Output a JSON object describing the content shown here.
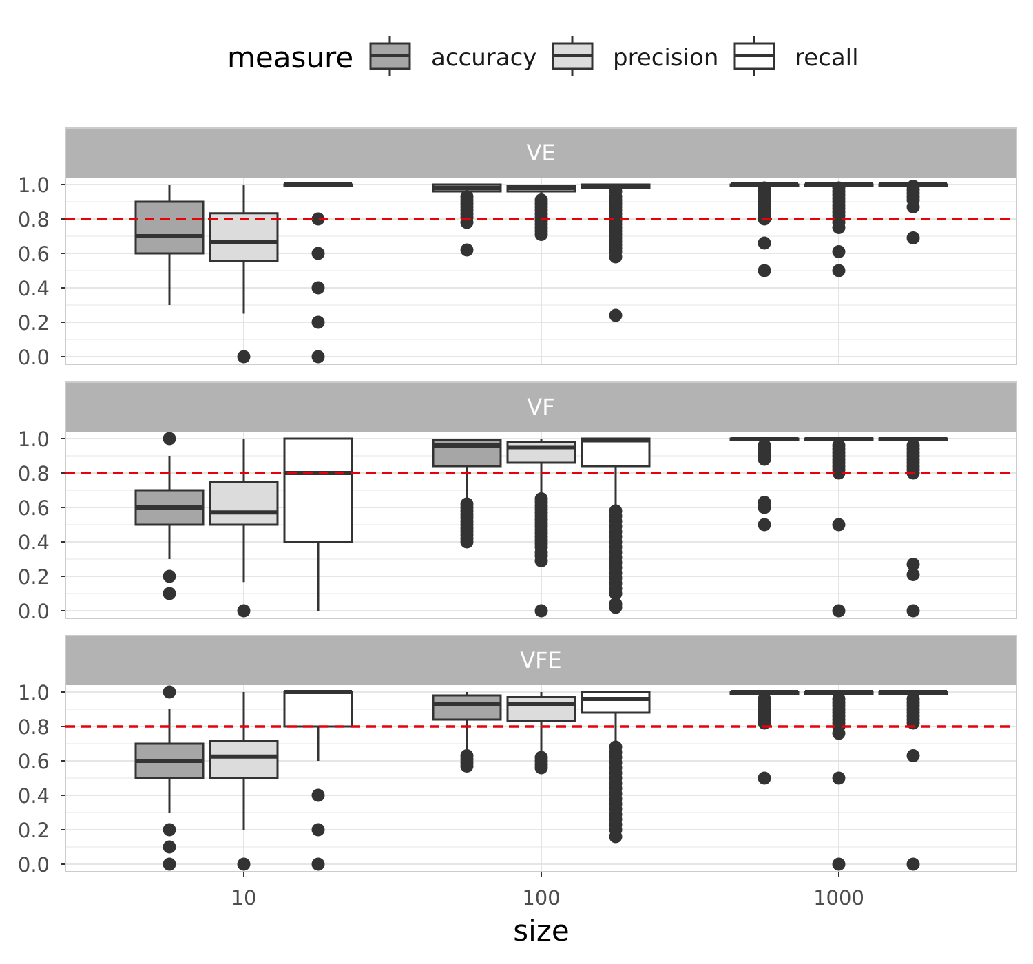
{
  "chart_data": {
    "type": "boxplot",
    "xlabel": "size",
    "x_scale": "log10",
    "x_categories": [
      "10",
      "100",
      "1000"
    ],
    "ylim": [
      0,
      1
    ],
    "y_ticks": [
      "0.0",
      "0.2",
      "0.4",
      "0.6",
      "0.8",
      "1.0"
    ],
    "reference_line": {
      "y": 0.8,
      "color": "#e8000b",
      "style": "dashed"
    },
    "legend": {
      "title": "measure",
      "position": "top",
      "entries": [
        {
          "name": "accuracy",
          "fill": "#a6a6a6"
        },
        {
          "name": "precision",
          "fill": "#dcdcdc"
        },
        {
          "name": "recall",
          "fill": "#ffffff"
        }
      ]
    },
    "panels": [
      {
        "label": "VE",
        "groups": [
          {
            "size": "10",
            "boxes": [
              {
                "measure": "accuracy",
                "lower": 0.3,
                "q1": 0.6,
                "median": 0.7,
                "q3": 0.9,
                "upper": 1.0,
                "outliers": []
              },
              {
                "measure": "precision",
                "lower": 0.25,
                "q1": 0.556,
                "median": 0.667,
                "q3": 0.833,
                "upper": 1.0,
                "outliers": [
                  0.0
                ]
              },
              {
                "measure": "recall",
                "lower": 1.0,
                "q1": 1.0,
                "median": 1.0,
                "q3": 1.0,
                "upper": 1.0,
                "outliers": [
                  0.8,
                  0.6,
                  0.4,
                  0.2,
                  0.0
                ]
              }
            ]
          },
          {
            "size": "100",
            "boxes": [
              {
                "measure": "accuracy",
                "lower": 0.96,
                "q1": 0.96,
                "median": 0.98,
                "q3": 1.0,
                "upper": 1.0,
                "outliers": [
                  0.93,
                  0.91,
                  0.89,
                  0.87,
                  0.85,
                  0.83,
                  0.81,
                  0.78,
                  0.62
                ]
              },
              {
                "measure": "precision",
                "lower": 0.95,
                "q1": 0.96,
                "median": 0.98,
                "q3": 0.99,
                "upper": 1.0,
                "outliers": [
                  0.91,
                  0.89,
                  0.87,
                  0.85,
                  0.83,
                  0.81,
                  0.79,
                  0.77,
                  0.75,
                  0.73,
                  0.71
                ]
              },
              {
                "measure": "recall",
                "lower": 0.98,
                "q1": 0.98,
                "median": 0.99,
                "q3": 1.0,
                "upper": 1.0,
                "outliers": [
                  0.96,
                  0.93,
                  0.91,
                  0.89,
                  0.87,
                  0.85,
                  0.83,
                  0.81,
                  0.79,
                  0.77,
                  0.75,
                  0.73,
                  0.71,
                  0.69,
                  0.67,
                  0.65,
                  0.63,
                  0.61,
                  0.58,
                  0.24
                ]
              }
            ]
          },
          {
            "size": "1000",
            "boxes": [
              {
                "measure": "accuracy",
                "lower": 0.99,
                "q1": 0.99,
                "median": 1.0,
                "q3": 1.0,
                "upper": 1.0,
                "outliers": [
                  0.98,
                  0.96,
                  0.94,
                  0.92,
                  0.9,
                  0.88,
                  0.86,
                  0.84,
                  0.82,
                  0.8,
                  0.66,
                  0.5
                ]
              },
              {
                "measure": "precision",
                "lower": 0.99,
                "q1": 0.99,
                "median": 1.0,
                "q3": 1.0,
                "upper": 1.0,
                "outliers": [
                  0.98,
                  0.96,
                  0.94,
                  0.92,
                  0.9,
                  0.88,
                  0.86,
                  0.84,
                  0.82,
                  0.8,
                  0.78,
                  0.75,
                  0.61,
                  0.5
                ]
              },
              {
                "measure": "recall",
                "lower": 1.0,
                "q1": 1.0,
                "median": 1.0,
                "q3": 1.0,
                "upper": 1.0,
                "outliers": [
                  0.99,
                  0.97,
                  0.95,
                  0.93,
                  0.91,
                  0.87,
                  0.69
                ]
              }
            ]
          }
        ]
      },
      {
        "label": "VF",
        "groups": [
          {
            "size": "10",
            "boxes": [
              {
                "measure": "accuracy",
                "lower": 0.3,
                "q1": 0.5,
                "median": 0.6,
                "q3": 0.7,
                "upper": 0.9,
                "outliers": [
                  1.0,
                  0.2,
                  0.1
                ]
              },
              {
                "measure": "precision",
                "lower": 0.167,
                "q1": 0.5,
                "median": 0.571,
                "q3": 0.75,
                "upper": 1.0,
                "outliers": [
                  0.0
                ]
              },
              {
                "measure": "recall",
                "lower": 0.0,
                "q1": 0.4,
                "median": 0.8,
                "q3": 1.0,
                "upper": 1.0,
                "outliers": []
              }
            ]
          },
          {
            "size": "100",
            "boxes": [
              {
                "measure": "accuracy",
                "lower": 0.64,
                "q1": 0.84,
                "median": 0.96,
                "q3": 0.99,
                "upper": 1.0,
                "outliers": [
                  0.62,
                  0.6,
                  0.58,
                  0.56,
                  0.54,
                  0.52,
                  0.5,
                  0.48,
                  0.46,
                  0.44,
                  0.42,
                  0.4
                ]
              },
              {
                "measure": "precision",
                "lower": 0.67,
                "q1": 0.86,
                "median": 0.95,
                "q3": 0.98,
                "upper": 1.0,
                "outliers": [
                  0.65,
                  0.63,
                  0.61,
                  0.59,
                  0.57,
                  0.55,
                  0.53,
                  0.51,
                  0.49,
                  0.47,
                  0.45,
                  0.43,
                  0.41,
                  0.39,
                  0.37,
                  0.34,
                  0.32,
                  0.29,
                  0.0
                ]
              },
              {
                "measure": "recall",
                "lower": 0.6,
                "q1": 0.84,
                "median": 0.99,
                "q3": 1.0,
                "upper": 1.0,
                "outliers": [
                  0.58,
                  0.55,
                  0.52,
                  0.49,
                  0.46,
                  0.43,
                  0.4,
                  0.37,
                  0.34,
                  0.31,
                  0.28,
                  0.25,
                  0.22,
                  0.19,
                  0.16,
                  0.13,
                  0.1,
                  0.04,
                  0.02
                ]
              }
            ]
          },
          {
            "size": "1000",
            "boxes": [
              {
                "measure": "accuracy",
                "lower": 0.98,
                "q1": 0.99,
                "median": 1.0,
                "q3": 1.0,
                "upper": 1.0,
                "outliers": [
                  0.96,
                  0.94,
                  0.92,
                  0.9,
                  0.88,
                  0.63,
                  0.6,
                  0.5
                ]
              },
              {
                "measure": "precision",
                "lower": 0.98,
                "q1": 0.99,
                "median": 1.0,
                "q3": 1.0,
                "upper": 1.0,
                "outliers": [
                  0.96,
                  0.94,
                  0.92,
                  0.9,
                  0.88,
                  0.86,
                  0.84,
                  0.82,
                  0.8,
                  0.5,
                  0.0
                ]
              },
              {
                "measure": "recall",
                "lower": 0.98,
                "q1": 0.99,
                "median": 1.0,
                "q3": 1.0,
                "upper": 1.0,
                "outliers": [
                  0.96,
                  0.94,
                  0.92,
                  0.9,
                  0.88,
                  0.86,
                  0.84,
                  0.82,
                  0.8,
                  0.27,
                  0.21,
                  0.0
                ]
              }
            ]
          }
        ]
      },
      {
        "label": "VFE",
        "groups": [
          {
            "size": "10",
            "boxes": [
              {
                "measure": "accuracy",
                "lower": 0.3,
                "q1": 0.5,
                "median": 0.6,
                "q3": 0.7,
                "upper": 0.9,
                "outliers": [
                  1.0,
                  0.2,
                  0.1,
                  0.0
                ]
              },
              {
                "measure": "precision",
                "lower": 0.2,
                "q1": 0.5,
                "median": 0.625,
                "q3": 0.714,
                "upper": 1.0,
                "outliers": [
                  0.0
                ]
              },
              {
                "measure": "recall",
                "lower": 0.6,
                "q1": 0.8,
                "median": 1.0,
                "q3": 1.0,
                "upper": 1.0,
                "outliers": [
                  0.4,
                  0.2,
                  0.0
                ]
              }
            ]
          },
          {
            "size": "100",
            "boxes": [
              {
                "measure": "accuracy",
                "lower": 0.66,
                "q1": 0.84,
                "median": 0.93,
                "q3": 0.98,
                "upper": 1.0,
                "outliers": [
                  0.63,
                  0.61,
                  0.59,
                  0.57
                ]
              },
              {
                "measure": "precision",
                "lower": 0.65,
                "q1": 0.83,
                "median": 0.93,
                "q3": 0.97,
                "upper": 1.0,
                "outliers": [
                  0.62,
                  0.6,
                  0.58,
                  0.56
                ]
              },
              {
                "measure": "recall",
                "lower": 0.7,
                "q1": 0.88,
                "median": 0.96,
                "q3": 1.0,
                "upper": 1.0,
                "outliers": [
                  0.68,
                  0.65,
                  0.62,
                  0.59,
                  0.56,
                  0.53,
                  0.5,
                  0.47,
                  0.44,
                  0.41,
                  0.38,
                  0.35,
                  0.32,
                  0.29,
                  0.26,
                  0.23,
                  0.2,
                  0.16
                ]
              }
            ]
          },
          {
            "size": "1000",
            "boxes": [
              {
                "measure": "accuracy",
                "lower": 0.98,
                "q1": 0.99,
                "median": 1.0,
                "q3": 1.0,
                "upper": 1.0,
                "outliers": [
                  0.96,
                  0.94,
                  0.92,
                  0.9,
                  0.88,
                  0.86,
                  0.84,
                  0.82,
                  0.5
                ]
              },
              {
                "measure": "precision",
                "lower": 0.98,
                "q1": 0.99,
                "median": 1.0,
                "q3": 1.0,
                "upper": 1.0,
                "outliers": [
                  0.96,
                  0.94,
                  0.92,
                  0.9,
                  0.88,
                  0.86,
                  0.84,
                  0.82,
                  0.8,
                  0.76,
                  0.5,
                  0.0
                ]
              },
              {
                "measure": "recall",
                "lower": 0.98,
                "q1": 0.99,
                "median": 1.0,
                "q3": 1.0,
                "upper": 1.0,
                "outliers": [
                  0.96,
                  0.94,
                  0.92,
                  0.9,
                  0.88,
                  0.86,
                  0.84,
                  0.82,
                  0.63,
                  0.0
                ]
              }
            ]
          }
        ]
      }
    ]
  }
}
